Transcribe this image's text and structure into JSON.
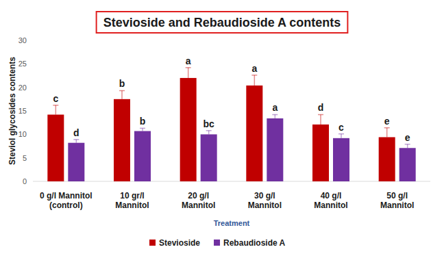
{
  "chart_data": {
    "type": "bar",
    "title": "Stevioside and Rebaudioside A contents",
    "x_label": "Treatment",
    "y_label": "Steviol glycosides contents",
    "categories": [
      "0 g/l Mannitol\n(control)",
      "10 gr/l\nMannitol",
      "20 g/l\nMannitol",
      "30 g/l\nMannitol",
      "40 g/l\nMannitol",
      "50 g/l\nMannitol"
    ],
    "series": [
      {
        "name": "Stevioside",
        "color": "#c00000",
        "values": [
          14.2,
          17.5,
          22.0,
          20.4,
          12.1,
          9.4
        ],
        "errors": [
          2.0,
          1.8,
          2.2,
          2.2,
          2.1,
          2.0
        ],
        "letters": [
          "c",
          "b",
          "a",
          "a",
          "d",
          "e"
        ]
      },
      {
        "name": "Rebaudioside A",
        "color": "#7030a0",
        "values": [
          8.2,
          10.7,
          10.0,
          13.4,
          9.2,
          7.1
        ],
        "errors": [
          0.7,
          0.6,
          0.8,
          0.8,
          0.9,
          0.8
        ],
        "letters": [
          "d",
          "b",
          "bc",
          "a",
          "c",
          "e"
        ]
      }
    ],
    "ylim": [
      0,
      30
    ],
    "yticks": [
      0,
      5,
      10,
      15,
      20,
      25,
      30
    ],
    "grid": false,
    "legend": "bottom"
  }
}
